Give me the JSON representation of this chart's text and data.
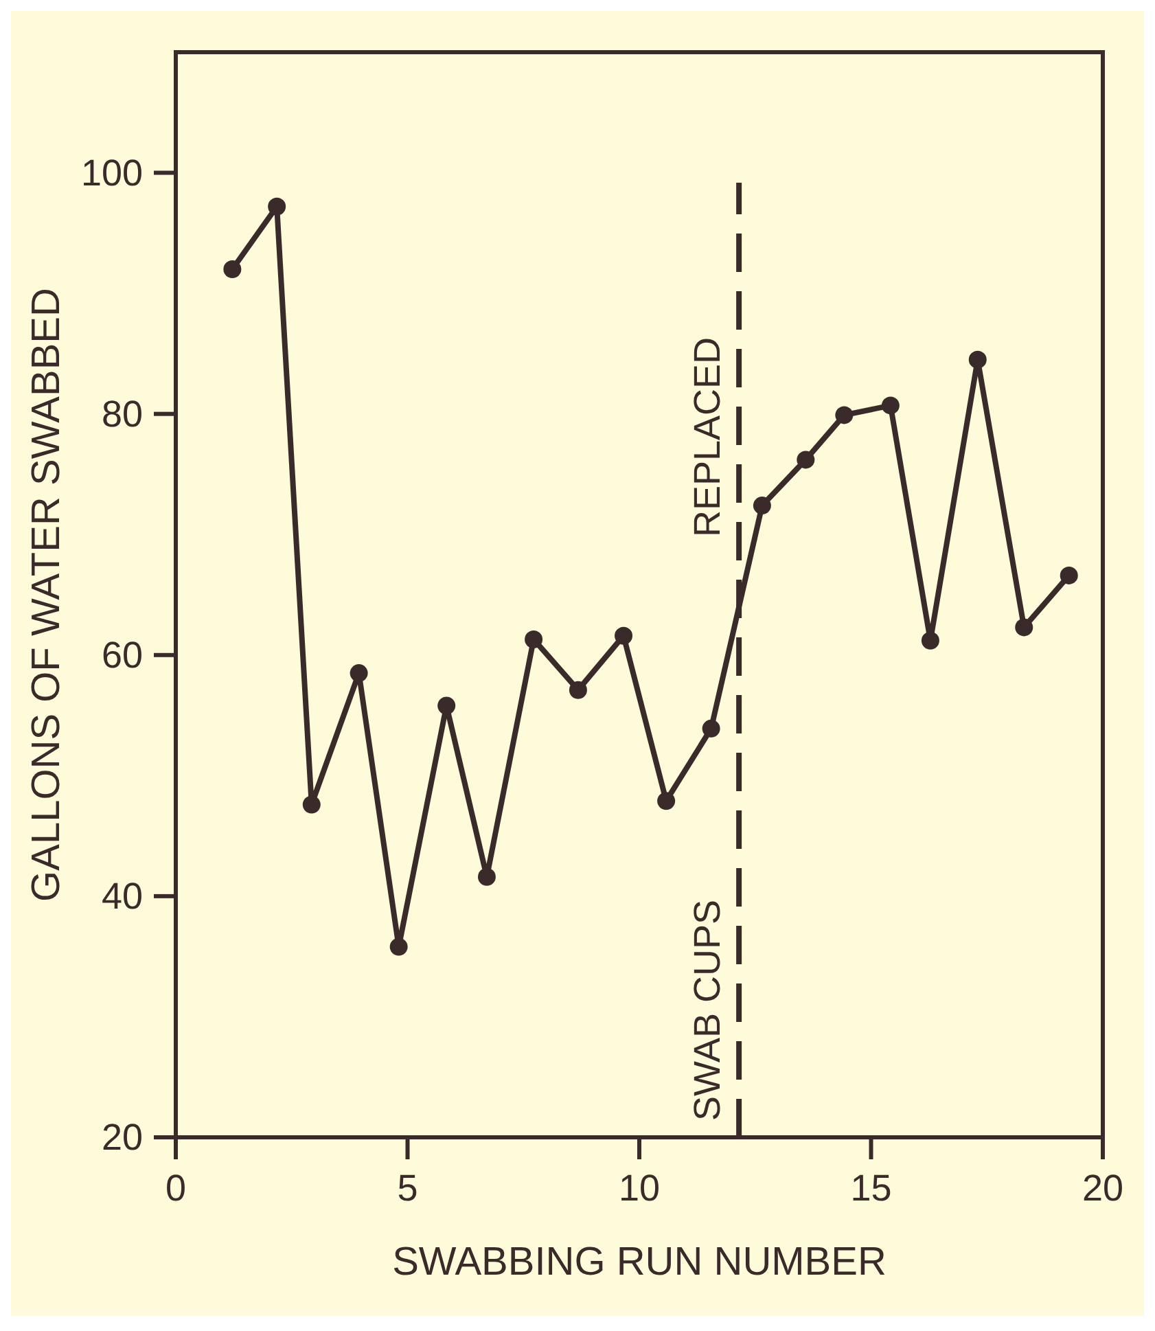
{
  "chart_data": {
    "type": "line",
    "xlabel": "SWABBING RUN NUMBER",
    "ylabel": "GALLONS OF WATER SWABBED",
    "x": [
      1.22,
      2.18,
      2.93,
      3.95,
      4.81,
      5.84,
      6.71,
      7.72,
      8.68,
      9.66,
      10.58,
      11.55,
      12.65,
      13.59,
      14.42,
      15.42,
      16.28,
      17.3,
      18.3,
      19.27
    ],
    "series": [
      {
        "color": "#3b2a2a",
        "values": [
          92.0,
          97.2,
          47.6,
          58.5,
          35.8,
          55.8,
          41.6,
          61.3,
          57.1,
          61.6,
          47.9,
          53.9,
          72.4,
          76.2,
          79.9,
          80.7,
          61.2,
          84.5,
          62.3,
          66.6
        ]
      }
    ],
    "xlim": [
      0,
      20
    ],
    "xticks": [
      0,
      5,
      10,
      15,
      20
    ],
    "ylim": [
      20,
      110
    ],
    "yticks": [
      20,
      40,
      60,
      80,
      100
    ],
    "marker": "circle",
    "line_style": "solid",
    "grid": false,
    "ref_lines": [
      {
        "axis": "x",
        "value": 12.15,
        "line_style": "dashed",
        "color": "#3b2a2a"
      }
    ],
    "annotations": [
      "SWAB CUPS",
      "REPLACED"
    ]
  }
}
